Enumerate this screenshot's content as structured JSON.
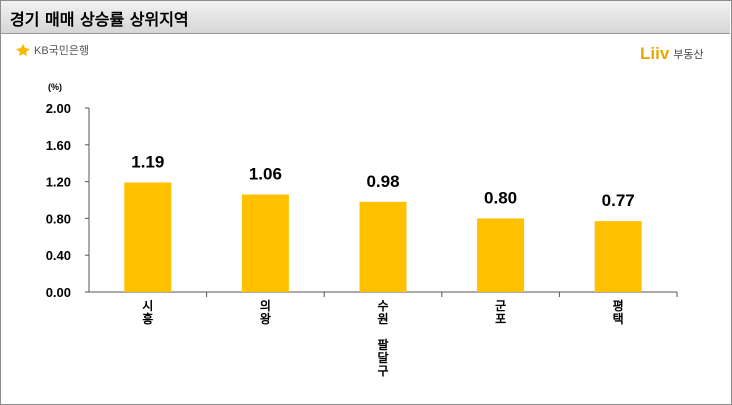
{
  "header": {
    "title": "경기 매매 상승률 상위지역"
  },
  "logos": {
    "kb_text": "KB국민은행",
    "liiv_word": "Liiv",
    "liiv_sub": "부동산"
  },
  "colors": {
    "bar": "#FFC000",
    "kb_brand": "#F5B800",
    "liiv_brand": "#E8A800"
  },
  "chart_data": {
    "type": "bar",
    "unit": "(%)",
    "categories": [
      [
        "시",
        "흥"
      ],
      [
        "의",
        "왕"
      ],
      [
        "수",
        "원",
        "",
        "팔",
        "달",
        "구"
      ],
      [
        "군",
        "포"
      ],
      [
        "평",
        "택"
      ]
    ],
    "values": [
      1.19,
      1.06,
      0.98,
      0.8,
      0.77
    ],
    "data_labels": [
      "1.19",
      "1.06",
      "0.98",
      "0.80",
      "0.77"
    ],
    "yticks": [
      "0.00",
      "0.40",
      "0.80",
      "1.20",
      "1.60",
      "2.00"
    ],
    "ylim": [
      0,
      2.0
    ],
    "grid": false,
    "legend": "none"
  }
}
